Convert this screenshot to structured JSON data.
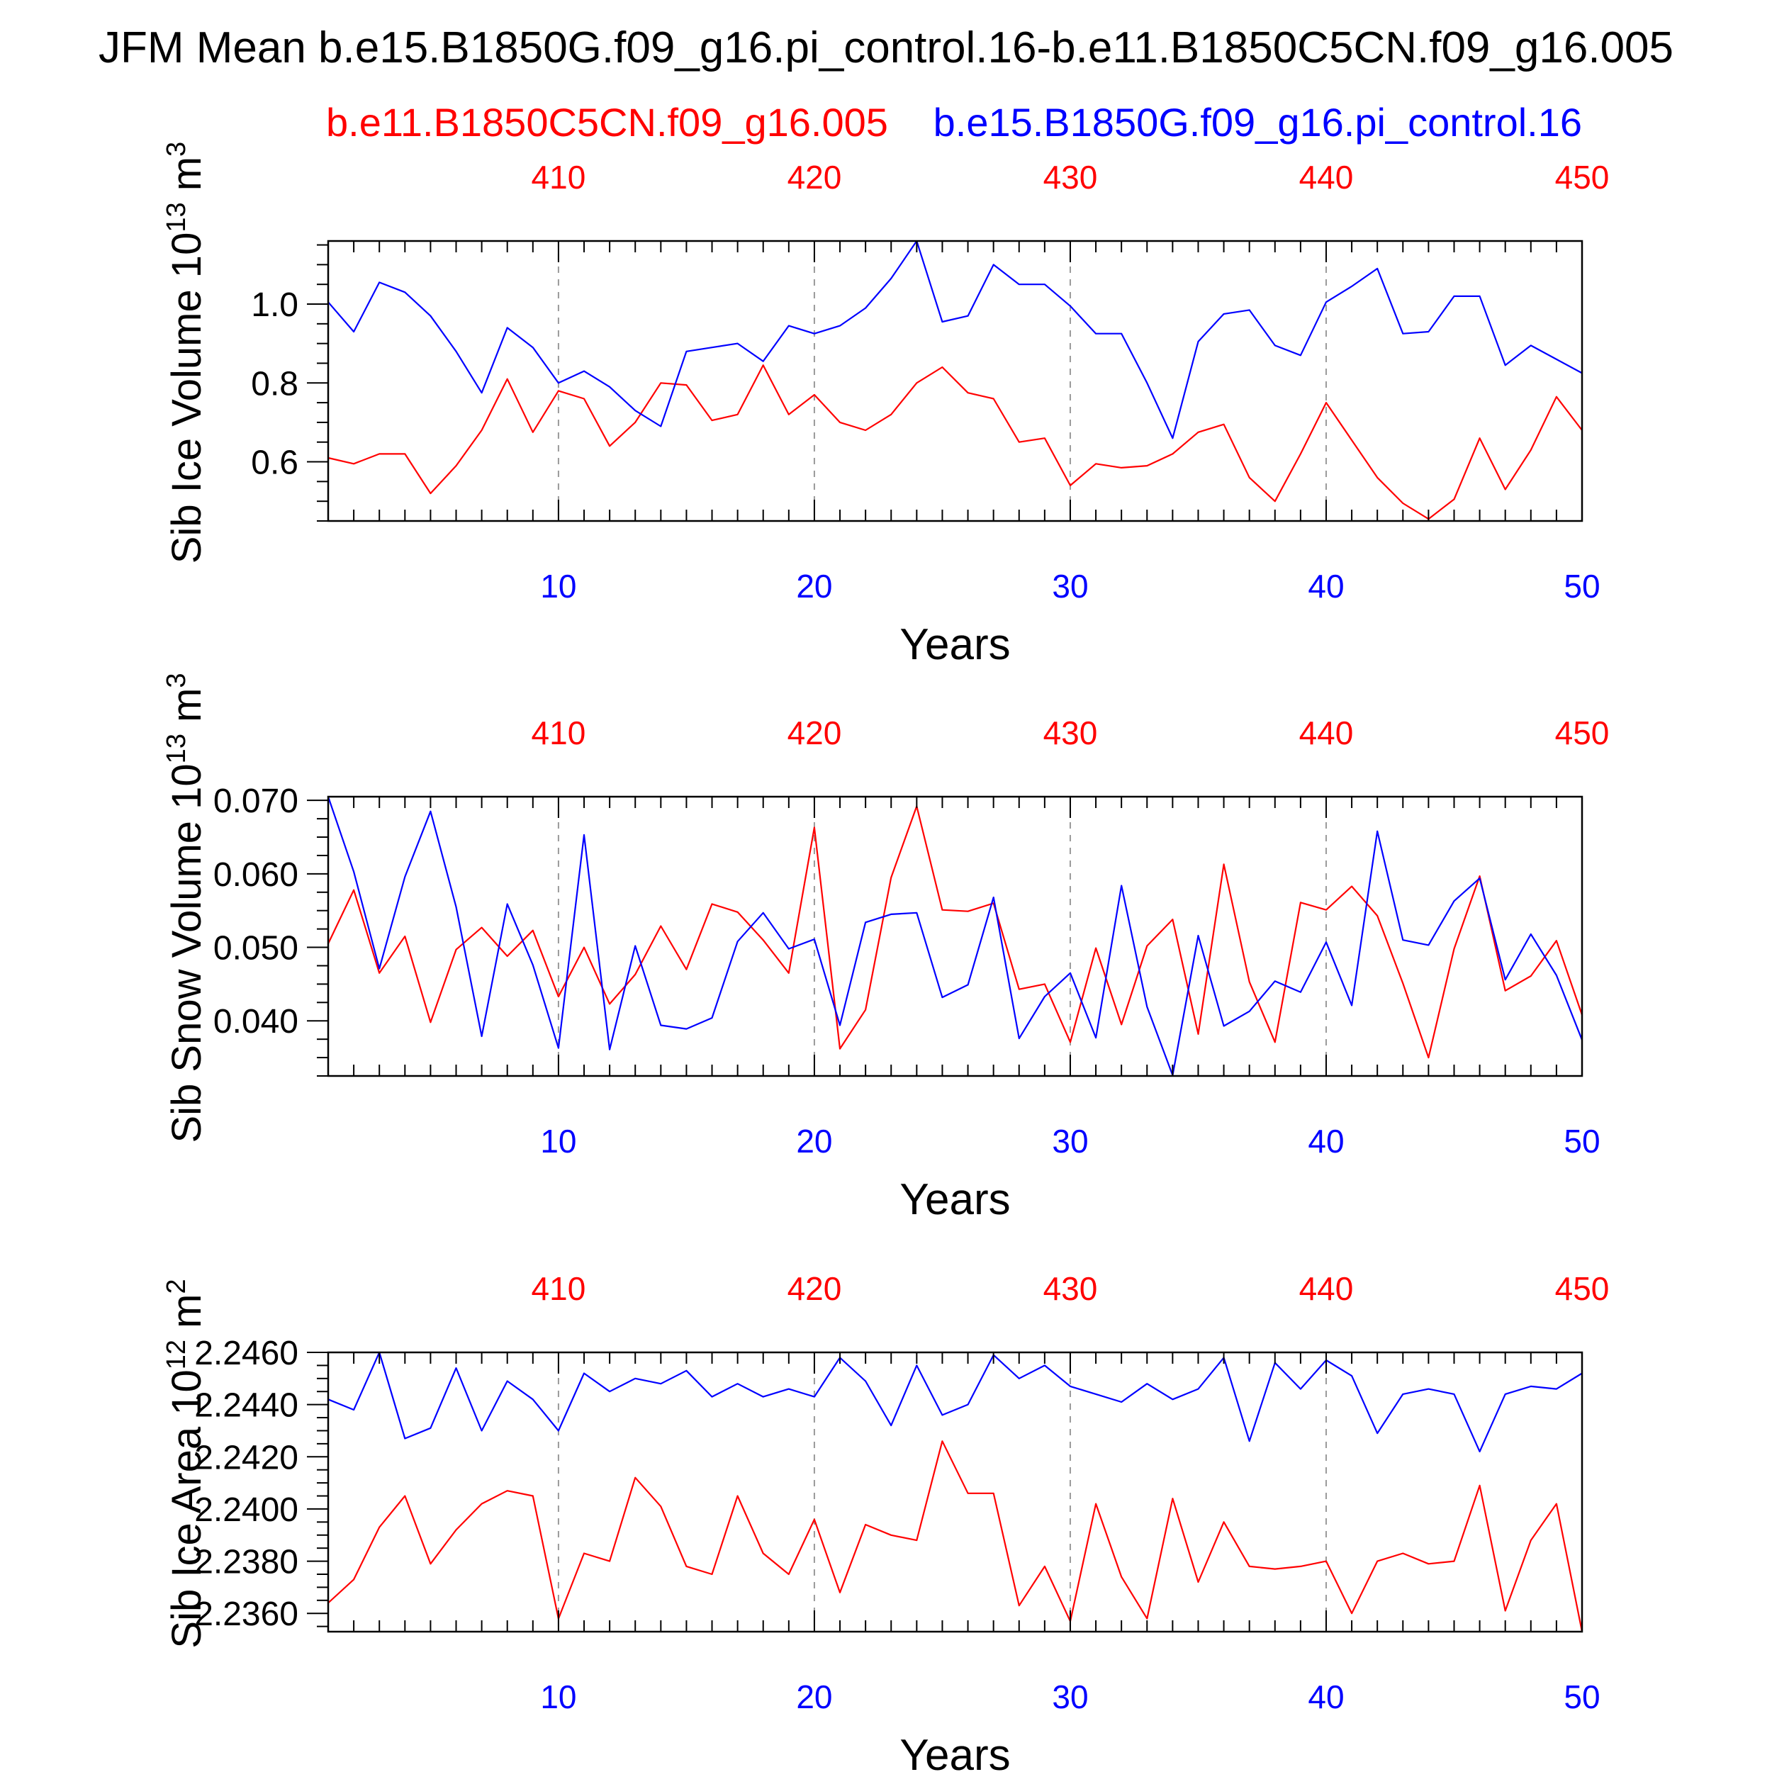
{
  "title": "JFM Mean b.e15.B1850G.f09_g16.pi_control.16-b.e11.B1850C5CN.f09_g16.005",
  "legend": {
    "red": "b.e11.B1850C5CN.f09_g16.005",
    "blue": "b.e15.B1850G.f09_g16.pi_control.16"
  },
  "colors": {
    "red": "#ff0000",
    "blue": "#0000ff",
    "axis": "#000000",
    "grid": "#9a9a9a"
  },
  "chart_data": [
    {
      "type": "line",
      "ylabel": "Sib Ice Volume 10",
      "unit_exp": "13",
      "unit": "m",
      "unit_pow": "3",
      "xlabel": "Years",
      "xlim": [
        1,
        50
      ],
      "ylim": [
        0.45,
        1.16
      ],
      "yticks": [
        0.6,
        0.8,
        1.0
      ],
      "ytick_labels": [
        "0.6",
        "0.8",
        "1.0"
      ],
      "yminor": [
        0.45,
        0.5,
        0.55,
        0.65,
        0.7,
        0.75,
        0.85,
        0.9,
        0.95,
        1.05,
        1.1,
        1.15
      ],
      "xticks_bottom": [
        10,
        20,
        30,
        40,
        50
      ],
      "xtick_labels_bottom": [
        "10",
        "20",
        "30",
        "40",
        "50"
      ],
      "xtick_labels_top": [
        "410",
        "420",
        "430",
        "440",
        "450"
      ],
      "x": [
        1,
        2,
        3,
        4,
        5,
        6,
        7,
        8,
        9,
        10,
        11,
        12,
        13,
        14,
        15,
        16,
        17,
        18,
        19,
        20,
        21,
        22,
        23,
        24,
        25,
        26,
        27,
        28,
        29,
        30,
        31,
        32,
        33,
        34,
        35,
        36,
        37,
        38,
        39,
        40,
        41,
        42,
        43,
        44,
        45,
        46,
        47,
        48,
        49,
        50
      ],
      "series": [
        {
          "name": "b.e11.B1850C5CN.f09_g16.005",
          "color": "red",
          "values": [
            0.61,
            0.595,
            0.62,
            0.62,
            0.52,
            0.59,
            0.68,
            0.81,
            0.675,
            0.78,
            0.76,
            0.64,
            0.7,
            0.8,
            0.795,
            0.705,
            0.72,
            0.845,
            0.72,
            0.77,
            0.7,
            0.68,
            0.72,
            0.8,
            0.84,
            0.775,
            0.76,
            0.65,
            0.66,
            0.54,
            0.595,
            0.585,
            0.59,
            0.62,
            0.675,
            0.695,
            0.56,
            0.5,
            0.62,
            0.75,
            0.655,
            0.56,
            0.495,
            0.455,
            0.505,
            0.66,
            0.53,
            0.63,
            0.765,
            0.68
          ]
        },
        {
          "name": "b.e15.B1850G.f09_g16.pi_control.16",
          "color": "blue",
          "values": [
            1.005,
            0.93,
            1.055,
            1.03,
            0.97,
            0.88,
            0.775,
            0.94,
            0.89,
            0.8,
            0.83,
            0.79,
            0.73,
            0.69,
            0.88,
            0.89,
            0.9,
            0.855,
            0.945,
            0.925,
            0.945,
            0.99,
            1.065,
            1.16,
            0.955,
            0.97,
            1.1,
            1.05,
            1.05,
            0.995,
            0.925,
            0.925,
            0.8,
            0.66,
            0.905,
            0.975,
            0.985,
            0.895,
            0.87,
            1.005,
            1.045,
            1.09,
            0.925,
            0.93,
            1.02,
            1.02,
            0.845,
            0.895,
            0.86,
            0.825
          ]
        }
      ]
    },
    {
      "type": "line",
      "ylabel": "Sib Snow Volume 10",
      "unit_exp": "13",
      "unit": "m",
      "unit_pow": "3",
      "xlabel": "Years",
      "xlim": [
        1,
        50
      ],
      "ylim": [
        0.0325,
        0.0705
      ],
      "yticks": [
        0.04,
        0.05,
        0.06,
        0.07
      ],
      "ytick_labels": [
        "0.040",
        "0.050",
        "0.060",
        "0.070"
      ],
      "yminor": [
        0.0325,
        0.035,
        0.0375,
        0.0425,
        0.045,
        0.0475,
        0.0525,
        0.055,
        0.0575,
        0.0625,
        0.065,
        0.0675
      ],
      "xticks_bottom": [
        10,
        20,
        30,
        40,
        50
      ],
      "xtick_labels_bottom": [
        "10",
        "20",
        "30",
        "40",
        "50"
      ],
      "xtick_labels_top": [
        "410",
        "420",
        "430",
        "440",
        "450"
      ],
      "x": [
        1,
        2,
        3,
        4,
        5,
        6,
        7,
        8,
        9,
        10,
        11,
        12,
        13,
        14,
        15,
        16,
        17,
        18,
        19,
        20,
        21,
        22,
        23,
        24,
        25,
        26,
        27,
        28,
        29,
        30,
        31,
        32,
        33,
        34,
        35,
        36,
        37,
        38,
        39,
        40,
        41,
        42,
        43,
        44,
        45,
        46,
        47,
        48,
        49,
        50
      ],
      "series": [
        {
          "name": "b.e11.B1850C5CN.f09_g16.005",
          "color": "red",
          "values": [
            0.0505,
            0.0578,
            0.0465,
            0.0515,
            0.0398,
            0.0497,
            0.0527,
            0.0488,
            0.0523,
            0.0433,
            0.05,
            0.0423,
            0.0463,
            0.0529,
            0.047,
            0.0559,
            0.0548,
            0.051,
            0.0465,
            0.0663,
            0.0362,
            0.0415,
            0.0595,
            0.0692,
            0.0551,
            0.0549,
            0.056,
            0.0443,
            0.045,
            0.0371,
            0.0499,
            0.0395,
            0.0502,
            0.0538,
            0.0382,
            0.0613,
            0.0453,
            0.0371,
            0.0561,
            0.0551,
            0.0583,
            0.0543,
            0.0451,
            0.035,
            0.0498,
            0.0597,
            0.0441,
            0.0461,
            0.0509,
            0.0408
          ]
        },
        {
          "name": "b.e15.B1850G.f09_g16.pi_control.16",
          "color": "blue",
          "values": [
            0.0705,
            0.0603,
            0.0471,
            0.0596,
            0.0685,
            0.0555,
            0.0379,
            0.0559,
            0.0476,
            0.0363,
            0.0653,
            0.0361,
            0.0502,
            0.0394,
            0.0389,
            0.0404,
            0.0508,
            0.0547,
            0.0498,
            0.0511,
            0.0394,
            0.0534,
            0.0545,
            0.0547,
            0.0432,
            0.0449,
            0.0568,
            0.0376,
            0.0433,
            0.0465,
            0.0377,
            0.0584,
            0.0419,
            0.0326,
            0.0516,
            0.0393,
            0.0413,
            0.0454,
            0.0439,
            0.0507,
            0.0421,
            0.0658,
            0.051,
            0.0503,
            0.0563,
            0.0594,
            0.0456,
            0.0518,
            0.0462,
            0.0374
          ]
        }
      ]
    },
    {
      "type": "line",
      "ylabel": "Sib Ice Area 10",
      "unit_exp": "12",
      "unit": "m",
      "unit_pow": "2",
      "xlabel": "Years",
      "xlim": [
        1,
        50
      ],
      "ylim": [
        2.2353,
        2.246
      ],
      "yticks": [
        2.236,
        2.238,
        2.24,
        2.242,
        2.244,
        2.246
      ],
      "ytick_labels": [
        "2.2360",
        "2.2380",
        "2.2400",
        "2.2420",
        "2.2440",
        "2.2460"
      ],
      "yminor": [
        2.2355,
        2.2365,
        2.237,
        2.2375,
        2.2385,
        2.239,
        2.2395,
        2.2405,
        2.241,
        2.2415,
        2.2425,
        2.243,
        2.2435,
        2.2445,
        2.245,
        2.2455
      ],
      "xticks_bottom": [
        10,
        20,
        30,
        40,
        50
      ],
      "xtick_labels_bottom": [
        "10",
        "20",
        "30",
        "40",
        "50"
      ],
      "xtick_labels_top": [
        "410",
        "420",
        "430",
        "440",
        "450"
      ],
      "x": [
        1,
        2,
        3,
        4,
        5,
        6,
        7,
        8,
        9,
        10,
        11,
        12,
        13,
        14,
        15,
        16,
        17,
        18,
        19,
        20,
        21,
        22,
        23,
        24,
        25,
        26,
        27,
        28,
        29,
        30,
        31,
        32,
        33,
        34,
        35,
        36,
        37,
        38,
        39,
        40,
        41,
        42,
        43,
        44,
        45,
        46,
        47,
        48,
        49,
        50
      ],
      "series": [
        {
          "name": "b.e11.B1850C5CN.f09_g16.005",
          "color": "red",
          "values": [
            2.2364,
            2.2373,
            2.2393,
            2.2405,
            2.2379,
            2.2392,
            2.2402,
            2.2407,
            2.2405,
            2.2358,
            2.2383,
            2.238,
            2.2412,
            2.2401,
            2.2378,
            2.2375,
            2.2405,
            2.2383,
            2.2375,
            2.2396,
            2.2368,
            2.2394,
            2.239,
            2.2388,
            2.2426,
            2.2406,
            2.2406,
            2.2363,
            2.2378,
            2.2357,
            2.2402,
            2.2374,
            2.2358,
            2.2404,
            2.2372,
            2.2395,
            2.2378,
            2.2377,
            2.2378,
            2.238,
            2.236,
            2.238,
            2.2383,
            2.2379,
            2.238,
            2.2409,
            2.2361,
            2.2388,
            2.2402,
            2.2353
          ]
        },
        {
          "name": "b.e15.B1850G.f09_g16.pi_control.16",
          "color": "blue",
          "values": [
            2.2442,
            2.2438,
            2.246,
            2.2427,
            2.2431,
            2.2454,
            2.243,
            2.2449,
            2.2442,
            2.243,
            2.2452,
            2.2445,
            2.245,
            2.2448,
            2.2453,
            2.2443,
            2.2448,
            2.2443,
            2.2446,
            2.2443,
            2.2458,
            2.2449,
            2.2432,
            2.2455,
            2.2436,
            2.244,
            2.2459,
            2.245,
            2.2455,
            2.2447,
            2.2444,
            2.2441,
            2.2448,
            2.2442,
            2.2446,
            2.2458,
            2.2426,
            2.2456,
            2.2446,
            2.2457,
            2.2451,
            2.2429,
            2.2444,
            2.2446,
            2.2444,
            2.2422,
            2.2444,
            2.2447,
            2.2446,
            2.2452
          ]
        }
      ]
    }
  ]
}
